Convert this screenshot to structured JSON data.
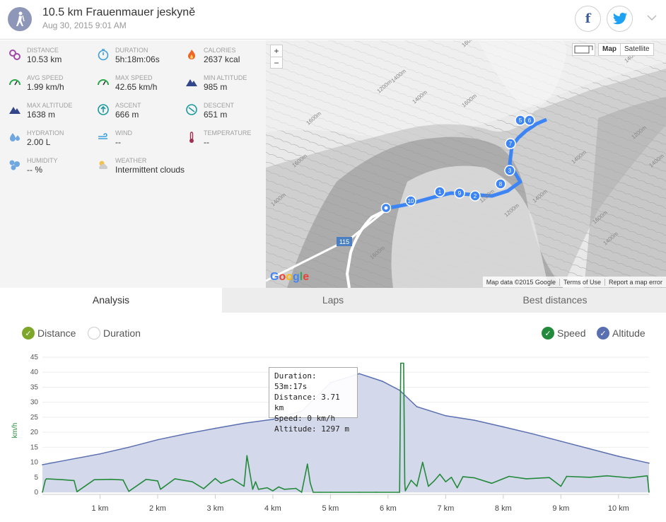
{
  "header": {
    "title": "10.5 km Frauenmauer jeskyně",
    "date": "Aug 30, 2015 9:01 AM",
    "facebook": "f"
  },
  "stats": [
    {
      "label": "Distance",
      "value": "10.53 km",
      "icon": "distance-icon",
      "color": "#a14aa8"
    },
    {
      "label": "Duration",
      "value": "5h:18m:06s",
      "icon": "stopwatch-icon",
      "color": "#3da0dd"
    },
    {
      "label": "Calories",
      "value": "2637 kcal",
      "icon": "flame-icon",
      "color": "#f06524"
    },
    {
      "label": "Avg speed",
      "value": "1.99 km/h",
      "icon": "speedometer-icon",
      "color": "#2aa64a"
    },
    {
      "label": "Max speed",
      "value": "42.65 km/h",
      "icon": "speedometer-icon",
      "color": "#2aa64a"
    },
    {
      "label": "Min altitude",
      "value": "985 m",
      "icon": "mountain-icon",
      "color": "#34468a"
    },
    {
      "label": "Max altitude",
      "value": "1638 m",
      "icon": "mountain-icon",
      "color": "#34468a"
    },
    {
      "label": "Ascent",
      "value": "666 m",
      "icon": "ascent-icon",
      "color": "#1a9aa0"
    },
    {
      "label": "Descent",
      "value": "651 m",
      "icon": "descent-icon",
      "color": "#1a9aa0"
    },
    {
      "label": "Hydration",
      "value": "2.00 L",
      "icon": "drops-icon",
      "color": "#6fa8e0"
    },
    {
      "label": "Wind",
      "value": "--",
      "icon": "wind-icon",
      "color": "#3da0dd"
    },
    {
      "label": "Temperature",
      "value": "--",
      "icon": "thermometer-icon",
      "color": "#a03050"
    },
    {
      "label": "Humidity",
      "value": "-- %",
      "icon": "humidity-icon",
      "color": "#6fa8e0"
    },
    {
      "label": "Weather",
      "value": "Intermittent clouds",
      "icon": "cloud-sun-icon",
      "color": "#c8a040"
    }
  ],
  "map": {
    "zoom_in": "+",
    "zoom_out": "−",
    "map_type": "Map",
    "satellite": "Satellite",
    "google": "Google",
    "data_credit": "Map data ©2015 Google",
    "terms": "Terms of Use",
    "report": "Report a map error",
    "road_label": "115",
    "contours": [
      "1600m",
      "1400m",
      "1200m",
      "1400m",
      "1600m",
      "1400m",
      "1200m",
      "1400m",
      "1600m",
      "1600m",
      "1400m",
      "1600m",
      "1400m",
      "1200m",
      "1600m",
      "1400m",
      "1400m",
      "1200m"
    ],
    "markers": [
      "1",
      "2",
      "3",
      "5",
      "6",
      "7",
      "8",
      "9",
      "10"
    ],
    "route_color": "#3d85f5"
  },
  "tabs": [
    {
      "label": "Analysis",
      "active": true
    },
    {
      "label": "Laps"
    },
    {
      "label": "Best distances"
    }
  ],
  "legend": {
    "distance": "Distance",
    "duration": "Duration",
    "speed": "Speed",
    "altitude": "Altitude"
  },
  "tooltip": {
    "duration": "Duration: 53m:17s",
    "distance": "Distance: 3.71 km",
    "speed": "Speed: 0 km/h",
    "altitude": "Altitude: 1297 m"
  },
  "chart_data": {
    "type": "area",
    "ylabel": "km/h",
    "xlabel": "",
    "ylim": [
      0,
      45
    ],
    "xlim": [
      0,
      10.53
    ],
    "y_ticks": [
      "0",
      "5",
      "10",
      "15",
      "20",
      "25",
      "30",
      "35",
      "40",
      "45"
    ],
    "x_ticks": [
      "1 km",
      "2 km",
      "3 km",
      "4 km",
      "5 km",
      "6 km",
      "7 km",
      "8 km",
      "9 km",
      "10 km"
    ],
    "series": [
      {
        "name": "Altitude",
        "color": "#5a6fb0",
        "fill": "#d3d8ea",
        "x": [
          0,
          0.5,
          1,
          1.5,
          2,
          2.5,
          3,
          3.5,
          4,
          4.5,
          5,
          5.5,
          5.9,
          6.2,
          6.5,
          7,
          7.5,
          8,
          8.5,
          9,
          9.5,
          10,
          10.53
        ],
        "y": [
          9.2,
          11,
          12.8,
          15,
          17.5,
          19.5,
          21.3,
          23,
          24.3,
          27,
          36.5,
          39.5,
          37,
          34,
          28.5,
          25.5,
          24,
          21.8,
          19.5,
          17,
          14.5,
          12,
          9.7
        ]
      },
      {
        "name": "Speed",
        "color": "#238a3b",
        "x": [
          0,
          0.05,
          0.07,
          0.35,
          0.55,
          0.6,
          0.9,
          1.2,
          1.4,
          1.5,
          1.8,
          2.0,
          2.05,
          2.3,
          2.6,
          2.8,
          3.0,
          3.1,
          3.3,
          3.5,
          3.55,
          3.65,
          3.7,
          3.75,
          3.9,
          4.0,
          4.1,
          4.2,
          4.4,
          4.5,
          4.6,
          4.65,
          4.7,
          4.8,
          5.0,
          5.5,
          5.8,
          6.2,
          6.22,
          6.27,
          6.29,
          6.3,
          6.4,
          6.5,
          6.6,
          6.7,
          6.8,
          6.9,
          7.0,
          7.1,
          7.2,
          7.3,
          7.5,
          7.8,
          8.1,
          8.4,
          8.8,
          9.0,
          9.1,
          9.5,
          9.8,
          10.2,
          10.5,
          10.53
        ],
        "y": [
          0,
          4,
          4.5,
          4.2,
          3.9,
          0.2,
          4.2,
          4.3,
          4.1,
          0.3,
          4.3,
          3.8,
          1,
          4.5,
          3.5,
          1.2,
          4.6,
          3,
          4.4,
          2,
          12.2,
          1,
          3.5,
          1,
          1.5,
          0.5,
          1.8,
          1,
          1.3,
          0,
          9.4,
          3,
          0,
          0,
          0,
          0,
          0,
          0,
          43,
          43,
          3,
          0.5,
          4,
          2,
          10,
          2,
          3.8,
          6,
          3.5,
          5,
          1.5,
          5.2,
          4.8,
          3,
          5.3,
          4.5,
          4.9,
          2,
          5.3,
          5,
          5.5,
          4.8,
          5.5,
          0
        ]
      }
    ]
  }
}
